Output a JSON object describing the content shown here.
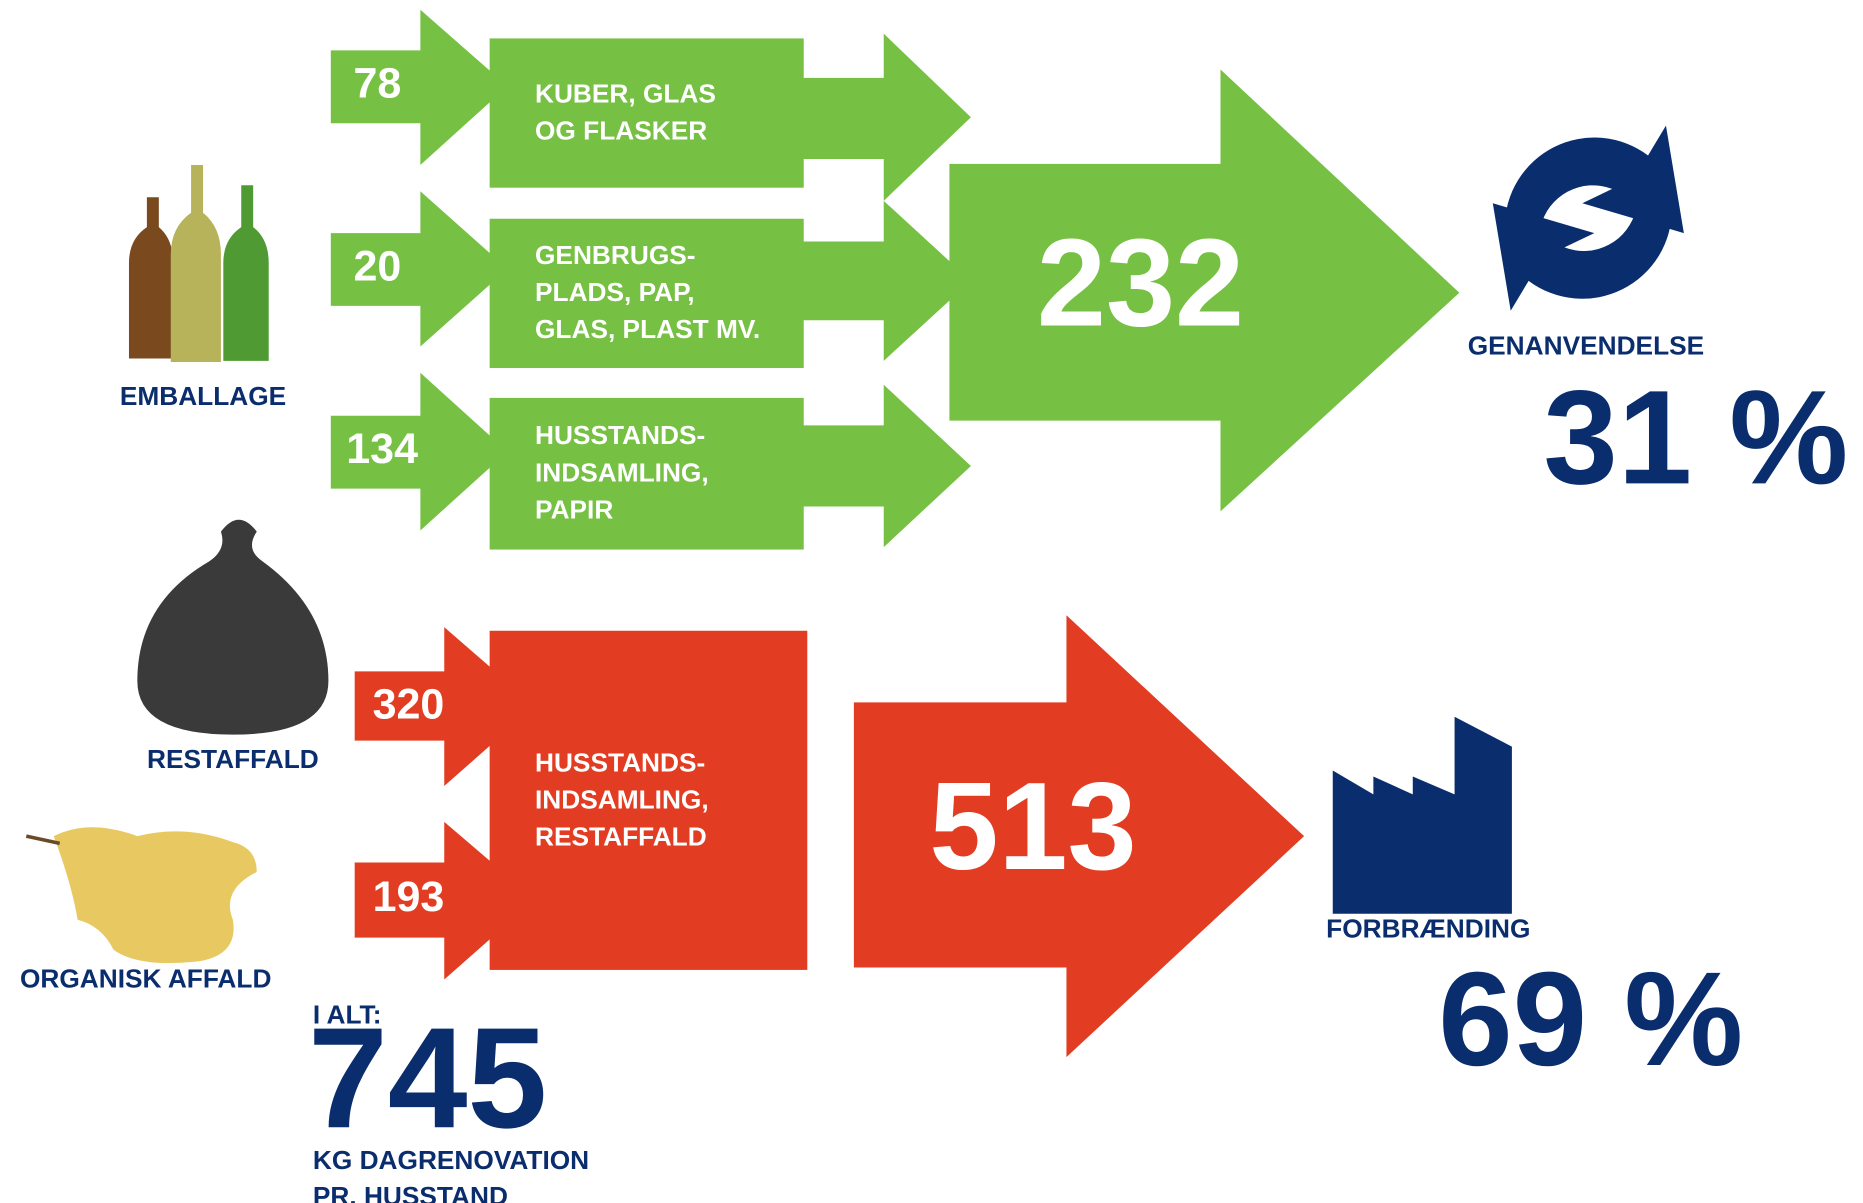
{
  "sources": [
    {
      "label": "EMBALLAGE"
    },
    {
      "label": "RESTAFFALD"
    },
    {
      "label": "ORGANISK AFFALD"
    }
  ],
  "recycling": {
    "flows": [
      {
        "value": "78",
        "label": [
          "KUBER, GLAS",
          "OG FLASKER"
        ]
      },
      {
        "value": "20",
        "label": [
          "GENBRUGS-",
          "PLADS, PAP,",
          "GLAS, PLAST MV."
        ]
      },
      {
        "value": "134",
        "label": [
          "HUSSTANDS-",
          "INDSAMLING,",
          "PAPIR"
        ]
      }
    ],
    "total": "232",
    "destination": "GENANVENDELSE",
    "share": "31 %"
  },
  "incineration": {
    "flows": [
      {
        "value": "320"
      },
      {
        "value": "193"
      }
    ],
    "label": [
      "HUSSTANDS-",
      "INDSAMLING,",
      "RESTAFFALD"
    ],
    "total": "513",
    "destination": "FORBRÆNDING",
    "share": "69 %"
  },
  "summary": {
    "heading": "I ALT:",
    "total": "745",
    "note": [
      "KG DAGRENOVATION",
      "PR. HUSSTAND"
    ]
  }
}
